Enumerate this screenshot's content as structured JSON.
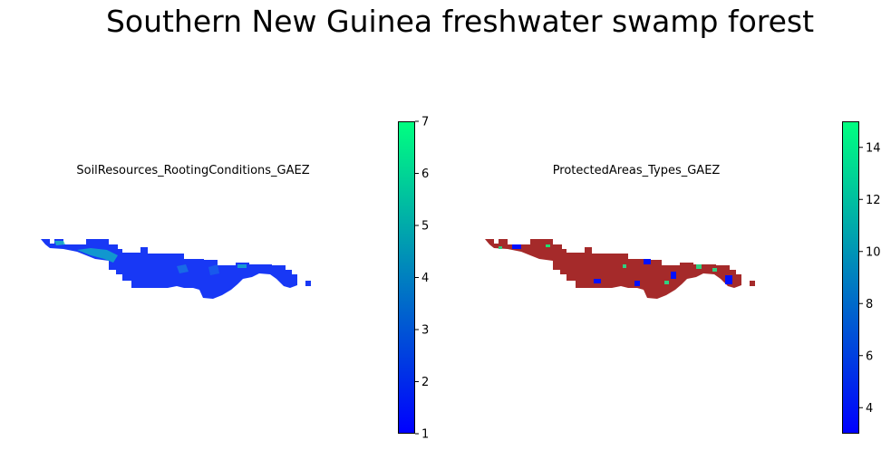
{
  "title": "Southern New Guinea freshwater swamp forest",
  "colors": {
    "cmap_low": "#0000ff",
    "cmap_high": "#00ff80",
    "protected_fill": "#a52a2a",
    "soil_fill": "#1a3cf0"
  },
  "chart_data": [
    {
      "type": "heatmap",
      "title": "SoilResources_RootingConditions_GAEZ",
      "colorbar": {
        "range": [
          1,
          7
        ],
        "ticks": [
          "1",
          "2",
          "3",
          "4",
          "5",
          "6",
          "7"
        ],
        "cmap": "winter"
      },
      "grid": false
    },
    {
      "type": "heatmap",
      "title": "ProtectedAreas_Types_GAEZ",
      "colorbar": {
        "range": [
          3,
          15
        ],
        "ticks": [
          "4",
          "6",
          "8",
          "10",
          "12",
          "14"
        ],
        "cmap": "winter"
      },
      "grid": false
    }
  ]
}
